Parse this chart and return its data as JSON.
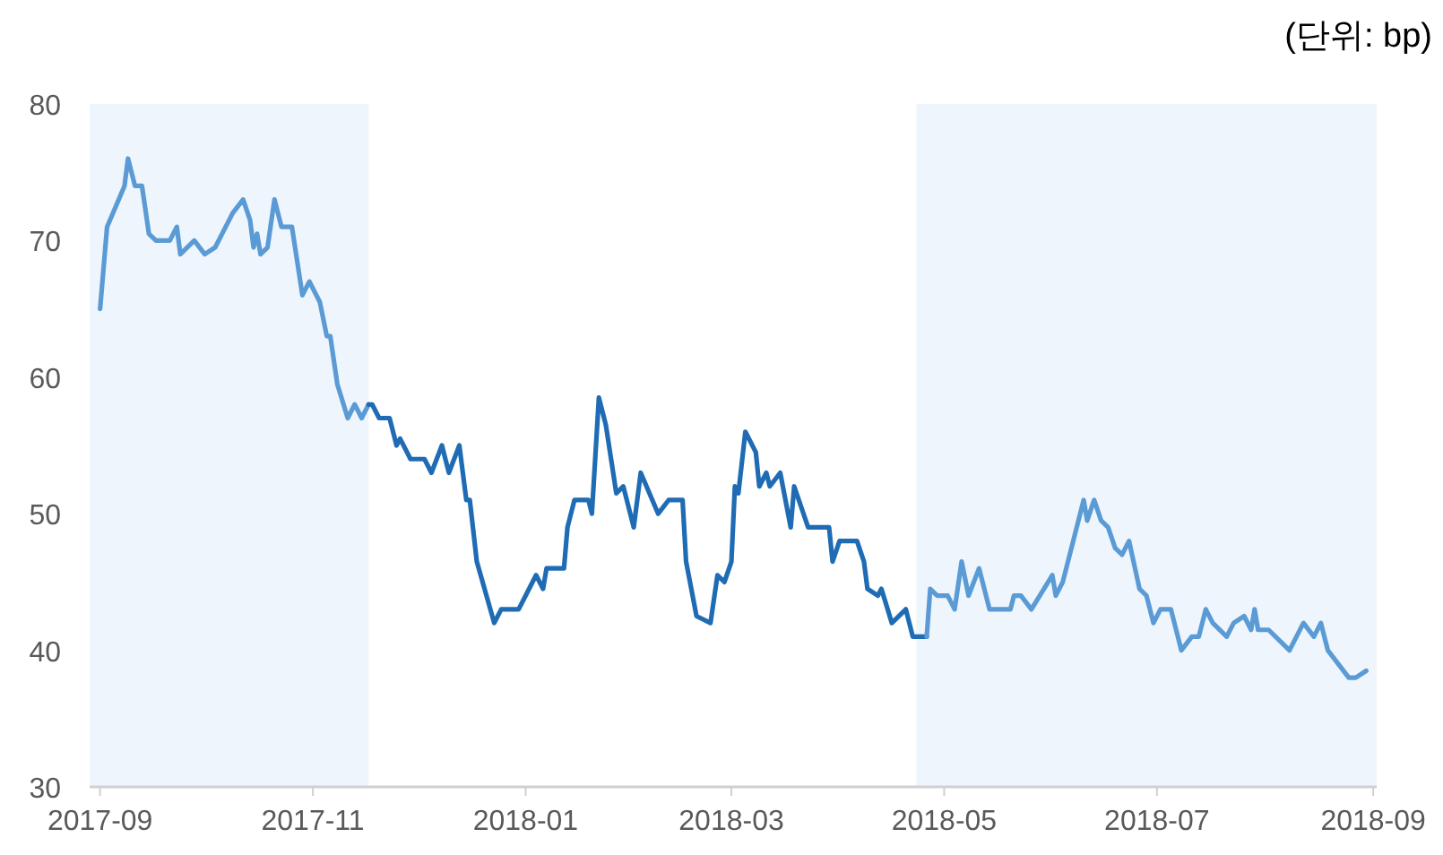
{
  "chart_data": {
    "type": "line",
    "annotations": [
      "(단위: bp)"
    ],
    "xlim": [
      "2017-08-29",
      "2018-09-02"
    ],
    "ylim": [
      30,
      80
    ],
    "xticks": [
      "2017-09",
      "2017-11",
      "2018-01",
      "2018-03",
      "2018-05",
      "2018-07",
      "2018-09"
    ],
    "yticks": [
      30,
      40,
      50,
      60,
      70,
      80
    ],
    "bands": [
      {
        "axis": "x",
        "from": "2017-08-29",
        "to": "2017-11-17",
        "color": "#eef5fc"
      },
      {
        "axis": "x",
        "from": "2018-04-23",
        "to": "2018-09-02",
        "color": "#eef5fc"
      }
    ],
    "series": [
      {
        "color": "#5b9bd5",
        "x": [
          "2017-09-01",
          "2017-09-03",
          "2017-09-08",
          "2017-09-09",
          "2017-09-11",
          "2017-09-13",
          "2017-09-15",
          "2017-09-17",
          "2017-09-21",
          "2017-09-23",
          "2017-09-24",
          "2017-09-28",
          "2017-10-01",
          "2017-10-04",
          "2017-10-07",
          "2017-10-09",
          "2017-10-12",
          "2017-10-14",
          "2017-10-15",
          "2017-10-16",
          "2017-10-17",
          "2017-10-19",
          "2017-10-21",
          "2017-10-23",
          "2017-10-26",
          "2017-10-29",
          "2017-10-31",
          "2017-11-03",
          "2017-11-05",
          "2017-11-06",
          "2017-11-08",
          "2017-11-11",
          "2017-11-13",
          "2017-11-15",
          "2017-11-17"
        ],
        "values": [
          65,
          71,
          74,
          76,
          74,
          74,
          70.5,
          70,
          70,
          71,
          69,
          70,
          69,
          69.5,
          71,
          72,
          73,
          71.5,
          69.5,
          70.5,
          69,
          69.5,
          73,
          71,
          71,
          66,
          67,
          65.5,
          63,
          63,
          59.5,
          57,
          58,
          57,
          58
        ]
      },
      {
        "color": "#1f6cb5",
        "x": [
          "2017-11-17",
          "2017-11-18",
          "2017-11-20",
          "2017-11-23",
          "2017-11-25",
          "2017-11-26",
          "2017-11-29",
          "2017-12-03",
          "2017-12-05",
          "2017-12-08",
          "2017-12-10",
          "2017-12-13",
          "2017-12-15",
          "2017-12-16",
          "2017-12-18",
          "2017-12-23",
          "2017-12-25",
          "2017-12-30",
          "2018-01-02",
          "2018-01-04",
          "2018-01-06",
          "2018-01-07",
          "2018-01-12",
          "2018-01-13",
          "2018-01-15",
          "2018-01-19",
          "2018-01-20",
          "2018-01-22",
          "2018-01-24",
          "2018-01-27",
          "2018-01-29",
          "2018-02-01",
          "2018-02-03",
          "2018-02-08",
          "2018-02-11",
          "2018-02-15",
          "2018-02-16",
          "2018-02-19",
          "2018-02-23",
          "2018-02-25",
          "2018-02-27",
          "2018-03-01",
          "2018-03-02",
          "2018-03-03",
          "2018-03-05",
          "2018-03-08",
          "2018-03-09",
          "2018-03-11",
          "2018-03-12",
          "2018-03-15",
          "2018-03-18",
          "2018-03-19",
          "2018-03-23",
          "2018-03-29",
          "2018-03-30",
          "2018-04-01",
          "2018-04-06",
          "2018-04-08",
          "2018-04-09",
          "2018-04-12",
          "2018-04-13",
          "2018-04-16",
          "2018-04-20",
          "2018-04-22",
          "2018-04-26"
        ],
        "values": [
          58,
          58,
          57,
          57,
          55,
          55.5,
          54,
          54,
          53,
          55,
          53,
          55,
          51,
          51,
          46.5,
          42,
          43,
          43,
          44.5,
          45.5,
          44.5,
          46,
          46,
          49,
          51,
          51,
          50,
          58.5,
          56.5,
          51.5,
          52,
          49,
          53,
          50,
          51,
          51,
          46.5,
          42.5,
          42,
          45.5,
          45,
          46.5,
          52,
          51.5,
          56,
          54.5,
          52,
          53,
          52,
          53,
          49,
          52,
          49,
          49,
          46.5,
          48,
          48,
          46.5,
          44.5,
          44,
          44.5,
          42,
          43,
          41,
          41
        ]
      },
      {
        "color": "#5b9bd5",
        "x": [
          "2018-04-26",
          "2018-04-27",
          "2018-04-29",
          "2018-05-02",
          "2018-05-04",
          "2018-05-06",
          "2018-05-08",
          "2018-05-11",
          "2018-05-14",
          "2018-05-20",
          "2018-05-21",
          "2018-05-23",
          "2018-05-26",
          "2018-06-01",
          "2018-06-02",
          "2018-06-04",
          "2018-06-07",
          "2018-06-10",
          "2018-06-11",
          "2018-06-13",
          "2018-06-15",
          "2018-06-17",
          "2018-06-19",
          "2018-06-21",
          "2018-06-23",
          "2018-06-26",
          "2018-06-28",
          "2018-06-30",
          "2018-07-02",
          "2018-07-05",
          "2018-07-08",
          "2018-07-11",
          "2018-07-13",
          "2018-07-15",
          "2018-07-17",
          "2018-07-21",
          "2018-07-23",
          "2018-07-26",
          "2018-07-28",
          "2018-07-29",
          "2018-07-30",
          "2018-08-02",
          "2018-08-04",
          "2018-08-08",
          "2018-08-12",
          "2018-08-15",
          "2018-08-17",
          "2018-08-19",
          "2018-08-22",
          "2018-08-25",
          "2018-08-27",
          "2018-08-30"
        ],
        "values": [
          41,
          44.5,
          44,
          44,
          43,
          46.5,
          44,
          46,
          43,
          43,
          44,
          44,
          43,
          45.5,
          44,
          45,
          48,
          51,
          49.5,
          51,
          49.5,
          49,
          47.5,
          47,
          48,
          44.5,
          44,
          42,
          43,
          43,
          40,
          41,
          41,
          43,
          42,
          41,
          42,
          42.5,
          41.5,
          43,
          41.5,
          41.5,
          41,
          40,
          42,
          41,
          42,
          40,
          39,
          38,
          38,
          38.5
        ]
      }
    ]
  }
}
